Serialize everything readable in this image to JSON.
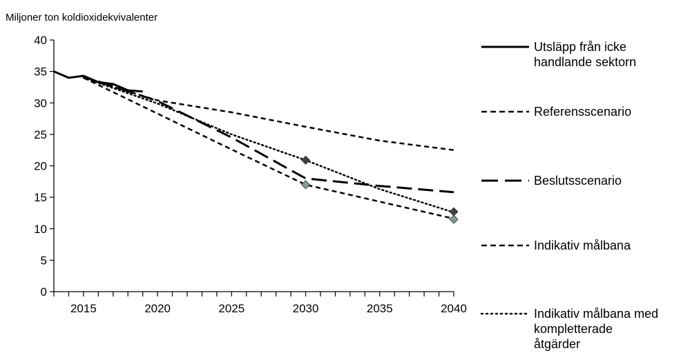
{
  "chart_data": {
    "type": "line",
    "ylabel": "Miljoner ton koldioxidekvivalenter",
    "xlim": [
      2013,
      2040
    ],
    "ylim": [
      0,
      40
    ],
    "x_ticks": [
      2015,
      2020,
      2025,
      2030,
      2035,
      2040
    ],
    "y_ticks": [
      0,
      5,
      10,
      15,
      20,
      25,
      30,
      35,
      40
    ],
    "grid": false,
    "legend_position": "right",
    "series": [
      {
        "name": "Utsläpp från icke handlande sektorn",
        "legend_lines": [
          "Utsläpp från icke",
          "handlande sektorn"
        ],
        "style": "solid",
        "color": "#000000",
        "points": [
          [
            2013,
            35.0
          ],
          [
            2014,
            34.0
          ],
          [
            2015,
            34.3
          ],
          [
            2016,
            33.3
          ],
          [
            2017,
            33.0
          ],
          [
            2018,
            32.0
          ],
          [
            2019,
            31.8
          ]
        ]
      },
      {
        "name": "Referensscenario",
        "legend_lines": [
          "Referensscenario"
        ],
        "style": "dash",
        "color": "#000000",
        "points": [
          [
            2015,
            34.0
          ],
          [
            2020,
            30.4
          ],
          [
            2025,
            28.5
          ],
          [
            2030,
            26.2
          ],
          [
            2035,
            24.0
          ],
          [
            2040,
            22.5
          ]
        ]
      },
      {
        "name": "Beslutsscenario",
        "legend_lines": [
          "Beslutsscenario"
        ],
        "style": "longdash",
        "color": "#000000",
        "points": [
          [
            2016,
            33.4
          ],
          [
            2020,
            30.3
          ],
          [
            2025,
            24.5
          ],
          [
            2030,
            18.0
          ],
          [
            2035,
            16.8
          ],
          [
            2040,
            15.8
          ]
        ]
      },
      {
        "name": "Indikativ målbana",
        "legend_lines": [
          "Indikativ målbana"
        ],
        "style": "dash",
        "color": "#000000",
        "points": [
          [
            2015,
            34.0
          ],
          [
            2020,
            28.3
          ],
          [
            2025,
            22.6
          ],
          [
            2030,
            17.0
          ],
          [
            2040,
            11.6
          ]
        ],
        "markers": [
          [
            2030,
            17.0
          ],
          [
            2040,
            11.5
          ]
        ],
        "marker_color": "#7f9f8f"
      },
      {
        "name": "Indikativ målbana med kompletterade åtgärder",
        "legend_lines": [
          "Indikativ målbana med",
          "kompletterade",
          "åtgärder"
        ],
        "style": "dot",
        "color": "#000000",
        "points": [
          [
            2015,
            34.0
          ],
          [
            2020,
            29.9
          ],
          [
            2025,
            25.0
          ],
          [
            2030,
            20.9
          ],
          [
            2035,
            16.3
          ],
          [
            2040,
            12.6
          ]
        ],
        "markers": [
          [
            2030,
            20.9
          ],
          [
            2040,
            12.7
          ]
        ],
        "marker_color": "#404040"
      }
    ]
  }
}
